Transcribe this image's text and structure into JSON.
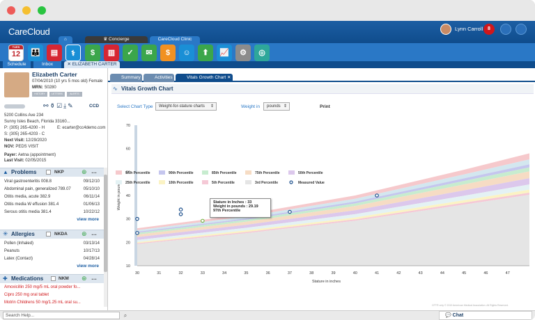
{
  "app": {
    "logo": "CareCloud",
    "user_name": "Lynn Carroll",
    "notif_count": "8"
  },
  "top_tabs": [
    {
      "label": "Concierge"
    },
    {
      "label": "CareCloud Clinic"
    }
  ],
  "toolbar": {
    "calendar_day": "12",
    "calendar_month": "TUES"
  },
  "sub_tabs": [
    {
      "label": "Schedule"
    },
    {
      "label": "Inbox"
    },
    {
      "label": "ELIZABETH CARTER"
    }
  ],
  "patient": {
    "name": "Elizabeth Carter",
    "dob_line": "07/04/2010 (10 yrs 5 mos old) Female",
    "mrn_label": "MRN:",
    "mrn": "50280",
    "badges": [
      "HISTORY",
      "LETTERS",
      "ALERTS"
    ],
    "ccd": "CCD",
    "address1": "5200 Collins Ave 234",
    "address2": "Sunny Isles Beach, Florida  33160...",
    "phone_p": "P: (305) 265-4200 - H",
    "email": "E: ecarter@cc4demo.com",
    "phone_s": "S: (305) 265-4203 - C",
    "next_visit_label": "Next Visit:",
    "next_visit": "12/29/2020",
    "nov_label": "NOV:",
    "nov": "PEDS VISIT",
    "payer_label": "Payer:",
    "payer": "Aetna (appointment)",
    "last_visit_label": "Last Visit:",
    "last_visit": "02/05/2015"
  },
  "problems": {
    "title": "Problems",
    "nkp": "NKP",
    "items": [
      {
        "name": "Viral gastroenteritis 008.8",
        "date": "09/12/10"
      },
      {
        "name": "Abdominal pain, generalized 789.07",
        "date": "05/10/10"
      },
      {
        "name": "Otitis media, acute 382.9",
        "date": "06/11/14"
      },
      {
        "name": "Otitis media W effusion 381.4",
        "date": "01/06/13"
      },
      {
        "name": "Serous otitis media 381.4",
        "date": "10/22/12"
      }
    ],
    "more": "view more"
  },
  "allergies": {
    "title": "Allergies",
    "nkda": "NKDA",
    "items": [
      {
        "name": "Pollen (Inhaled)",
        "date": "03/13/14"
      },
      {
        "name": "Peanuts",
        "date": "10/17/13"
      },
      {
        "name": "Latex (Contact)",
        "date": "04/28/14"
      }
    ],
    "more": "view more"
  },
  "medications": {
    "title": "Medications",
    "nkm": "NKM",
    "items": [
      "Amoxicillin 250 mg/5 mL oral powder fo...",
      "Cipro 250 mg oral tablet",
      "Motrin Childrens 50 mg/1.25 mL oral su..."
    ]
  },
  "inner_tabs": [
    {
      "label": "Summary"
    },
    {
      "label": "Activities"
    },
    {
      "label": "Vitals Growth Chart"
    }
  ],
  "panel": {
    "title": "Vitals Growth Chart",
    "chart_type_label": "Select Chart Type",
    "chart_type_value": "Weight-for-stature charts",
    "weight_label": "Weight in",
    "weight_value": "pounds",
    "print": "Print",
    "copyright": "CPT® only © 2019 American Medical Association. All Rights Reserved."
  },
  "tooltip": {
    "line1": "Stature in Inches : 33",
    "line2": "Weight in pounds : 29.19",
    "line3": "97th Percentile"
  },
  "search": {
    "placeholder": "Search Help..."
  },
  "chat": {
    "label": "Chat"
  },
  "chart_data": {
    "type": "area",
    "xlabel": "Stature in inches",
    "ylabel": "Weight in pounds",
    "xlim": [
      30,
      48
    ],
    "ylim": [
      10,
      70
    ],
    "x_ticks": [
      30,
      31,
      32,
      33,
      34,
      35,
      36,
      37,
      38,
      39,
      40,
      41,
      42,
      43,
      44,
      45,
      46,
      47
    ],
    "y_ticks": [
      10,
      20,
      30,
      40,
      50,
      60,
      70
    ],
    "percentile_x": [
      30,
      35,
      40,
      45,
      48
    ],
    "bands": [
      {
        "name": "97th Percentile",
        "color": "#f6c9cc",
        "values": [
          26,
          32,
          40,
          51,
          58
        ]
      },
      {
        "name": "95th Percentile",
        "color": "#d3e7ef",
        "values": [
          25.2,
          31,
          38.6,
          49,
          55.4
        ]
      },
      {
        "name": "90th Percentile",
        "color": "#c5c6ee",
        "values": [
          24.5,
          30.2,
          37.4,
          47.3,
          53.3
        ]
      },
      {
        "name": "85th Percentile",
        "color": "#c7eccf",
        "values": [
          24,
          29.6,
          36.6,
          46.2,
          52
        ]
      },
      {
        "name": "75th Percentile",
        "color": "#f6dcc4",
        "values": [
          23.3,
          28.8,
          35.5,
          44.7,
          50.3
        ]
      },
      {
        "name": "50th Percentile",
        "color": "#dcc8ec",
        "values": [
          22.2,
          27.5,
          33.7,
          42.2,
          47.4
        ]
      },
      {
        "name": "25th Percentile",
        "color": "#e4f2f4",
        "values": [
          21,
          26.2,
          32,
          39.9,
          44.7
        ]
      },
      {
        "name": "10th Percentile",
        "color": "#fbf3c4",
        "values": [
          20.1,
          25.1,
          30.6,
          38,
          42.5
        ]
      },
      {
        "name": "5th Percentile",
        "color": "#f5c9d6",
        "values": [
          19.6,
          24.4,
          29.8,
          36.9,
          41.2
        ]
      },
      {
        "name": "3rd Percentile",
        "color": "#e5e5e5",
        "values": [
          19.2,
          23.9,
          29.2,
          36.1,
          40.3
        ]
      }
    ],
    "measured": {
      "name": "Measured Value",
      "color": "#1c4f8c",
      "points": [
        [
          30,
          30
        ],
        [
          30,
          24
        ],
        [
          32,
          34
        ],
        [
          32,
          32
        ],
        [
          33,
          29.19
        ],
        [
          37,
          33
        ],
        [
          41,
          40
        ]
      ]
    },
    "legend": [
      "97th Percentile",
      "90th Percentile",
      "85th Percentile",
      "75th Percentile",
      "50th Percentile",
      "25th Percentile",
      "10th Percentile",
      "5th Percentile",
      "3rd Percentile",
      "Measured Value"
    ],
    "legend_colors": [
      "#f6c9cc",
      "#c5c6ee",
      "#c7eccf",
      "#f6dcc4",
      "#dcc8ec",
      "#e4f2f4",
      "#fbf3c4",
      "#f5c9d6",
      "#e5e5e5",
      "#1c4f8c"
    ]
  }
}
